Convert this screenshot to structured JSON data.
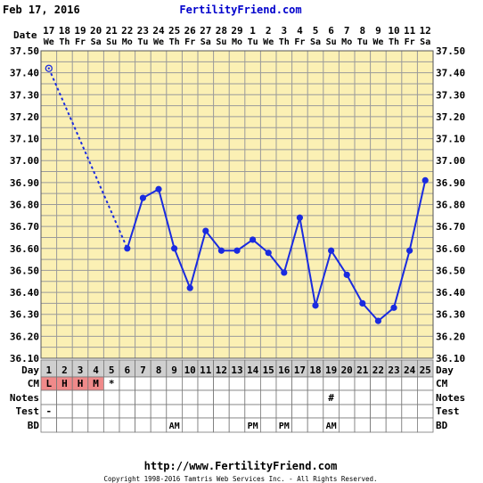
{
  "header": {
    "date": "Feb 17, 2016",
    "site": "FertilityFriend.com"
  },
  "footer": {
    "url": "http://www.FertilityFriend.com",
    "copyright": "Copyright 1998-2016 Tamtris Web Services Inc. - All Rights Reserved."
  },
  "row_labels": {
    "date": "Date",
    "day": "Day",
    "cm": "CM",
    "notes": "Notes",
    "test": "Test",
    "bd": "BD"
  },
  "colors": {
    "plot_bg": "#fbf0b4",
    "grid": "#9a9a9a",
    "line": "#1a2be0",
    "day_row_bg": "#cfcfcf",
    "cm_bg": "#f08a8a",
    "site_link": "#0000cc"
  },
  "dates": [
    "17",
    "18",
    "19",
    "20",
    "21",
    "22",
    "23",
    "24",
    "25",
    "26",
    "27",
    "28",
    "29",
    "1",
    "2",
    "3",
    "4",
    "5",
    "6",
    "7",
    "8",
    "9",
    "10",
    "11",
    "12"
  ],
  "weekdays": [
    "We",
    "Th",
    "Fr",
    "Sa",
    "Su",
    "Mo",
    "Tu",
    "We",
    "Th",
    "Fr",
    "Sa",
    "Su",
    "Mo",
    "Tu",
    "We",
    "Th",
    "Fr",
    "Sa",
    "Su",
    "Mo",
    "Tu",
    "We",
    "Th",
    "Fr",
    "Sa"
  ],
  "days": [
    "1",
    "2",
    "3",
    "4",
    "5",
    "6",
    "7",
    "8",
    "9",
    "10",
    "11",
    "12",
    "13",
    "14",
    "15",
    "16",
    "17",
    "18",
    "19",
    "20",
    "21",
    "22",
    "23",
    "24",
    "25"
  ],
  "cm": [
    "L",
    "H",
    "H",
    "M",
    "*",
    "",
    "",
    "",
    "",
    "",
    "",
    "",
    "",
    "",
    "",
    "",
    "",
    "",
    "",
    "",
    "",
    "",
    "",
    "",
    ""
  ],
  "notes": [
    "",
    "",
    "",
    "",
    "",
    "",
    "",
    "",
    "",
    "",
    "",
    "",
    "",
    "",
    "",
    "",
    "",
    "",
    "#",
    "",
    "",
    "",
    "",
    "",
    ""
  ],
  "test": [
    "-",
    "",
    "",
    "",
    "",
    "",
    "",
    "",
    "",
    "",
    "",
    "",
    "",
    "",
    "",
    "",
    "",
    "",
    "",
    "",
    "",
    "",
    "",
    "",
    ""
  ],
  "bd": [
    "",
    "",
    "",
    "",
    "",
    "",
    "",
    "",
    "AM",
    "",
    "",
    "",
    "",
    "PM",
    "",
    "PM",
    "",
    "",
    "AM",
    "",
    "",
    "",
    "",
    "",
    ""
  ],
  "chart_data": {
    "type": "line",
    "ylim": [
      36.1,
      37.5
    ],
    "yticks": [
      "37.50",
      "37.40",
      "37.30",
      "37.20",
      "37.10",
      "37.00",
      "36.90",
      "36.80",
      "36.70",
      "36.60",
      "36.50",
      "36.40",
      "36.30",
      "36.20",
      "36.10"
    ],
    "x": [
      1,
      2,
      3,
      4,
      5,
      6,
      7,
      8,
      9,
      10,
      11,
      12,
      13,
      14,
      15,
      16,
      17,
      18,
      19,
      20,
      21,
      22,
      23,
      24,
      25
    ],
    "values": [
      37.42,
      null,
      null,
      null,
      null,
      36.6,
      36.83,
      36.87,
      36.6,
      36.42,
      36.68,
      36.59,
      36.59,
      36.64,
      36.58,
      36.49,
      36.74,
      36.34,
      36.59,
      36.48,
      36.35,
      36.27,
      36.33,
      36.59,
      36.91
    ],
    "open_points": [
      1
    ],
    "dotted_segments": [
      [
        1,
        6
      ]
    ],
    "grid": true
  }
}
